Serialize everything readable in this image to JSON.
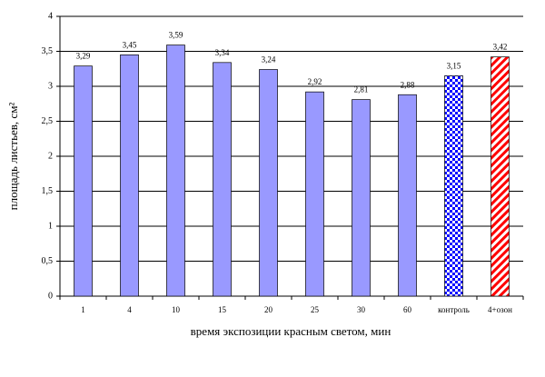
{
  "chart_data": {
    "type": "bar",
    "x_label": "время экспозиции красным светом, мин",
    "y_label": "площадь листьев, см²",
    "categories": [
      "1",
      "4",
      "10",
      "15",
      "20",
      "25",
      "30",
      "60",
      "контроль",
      "4+озон"
    ],
    "values": [
      3.29,
      3.45,
      3.59,
      3.34,
      3.24,
      2.92,
      2.81,
      2.88,
      3.15,
      3.42
    ],
    "value_labels": [
      "3,29",
      "3,45",
      "3,59",
      "3,34",
      "3,24",
      "2,92",
      "2,81",
      "2,88",
      "3,15",
      "3,42"
    ],
    "colors": [
      "#9999ff",
      "#9999ff",
      "#9999ff",
      "#9999ff",
      "#9999ff",
      "#9999ff",
      "#9999ff",
      "#9999ff",
      "#0000ff",
      "#ff0000"
    ],
    "fill_styles": [
      "solid",
      "solid",
      "solid",
      "solid",
      "solid",
      "solid",
      "solid",
      "solid",
      "checker",
      "hatch"
    ],
    "ylim": [
      0,
      4
    ],
    "yticks": [
      0,
      {
        "value": 0.5,
        "label": "0,5"
      },
      1,
      {
        "value": 1.5,
        "label": "1,5"
      },
      2,
      {
        "value": 2.5,
        "label": "2,5"
      },
      3,
      {
        "value": 3.5,
        "label": "3,5"
      },
      4
    ],
    "grid": true
  }
}
